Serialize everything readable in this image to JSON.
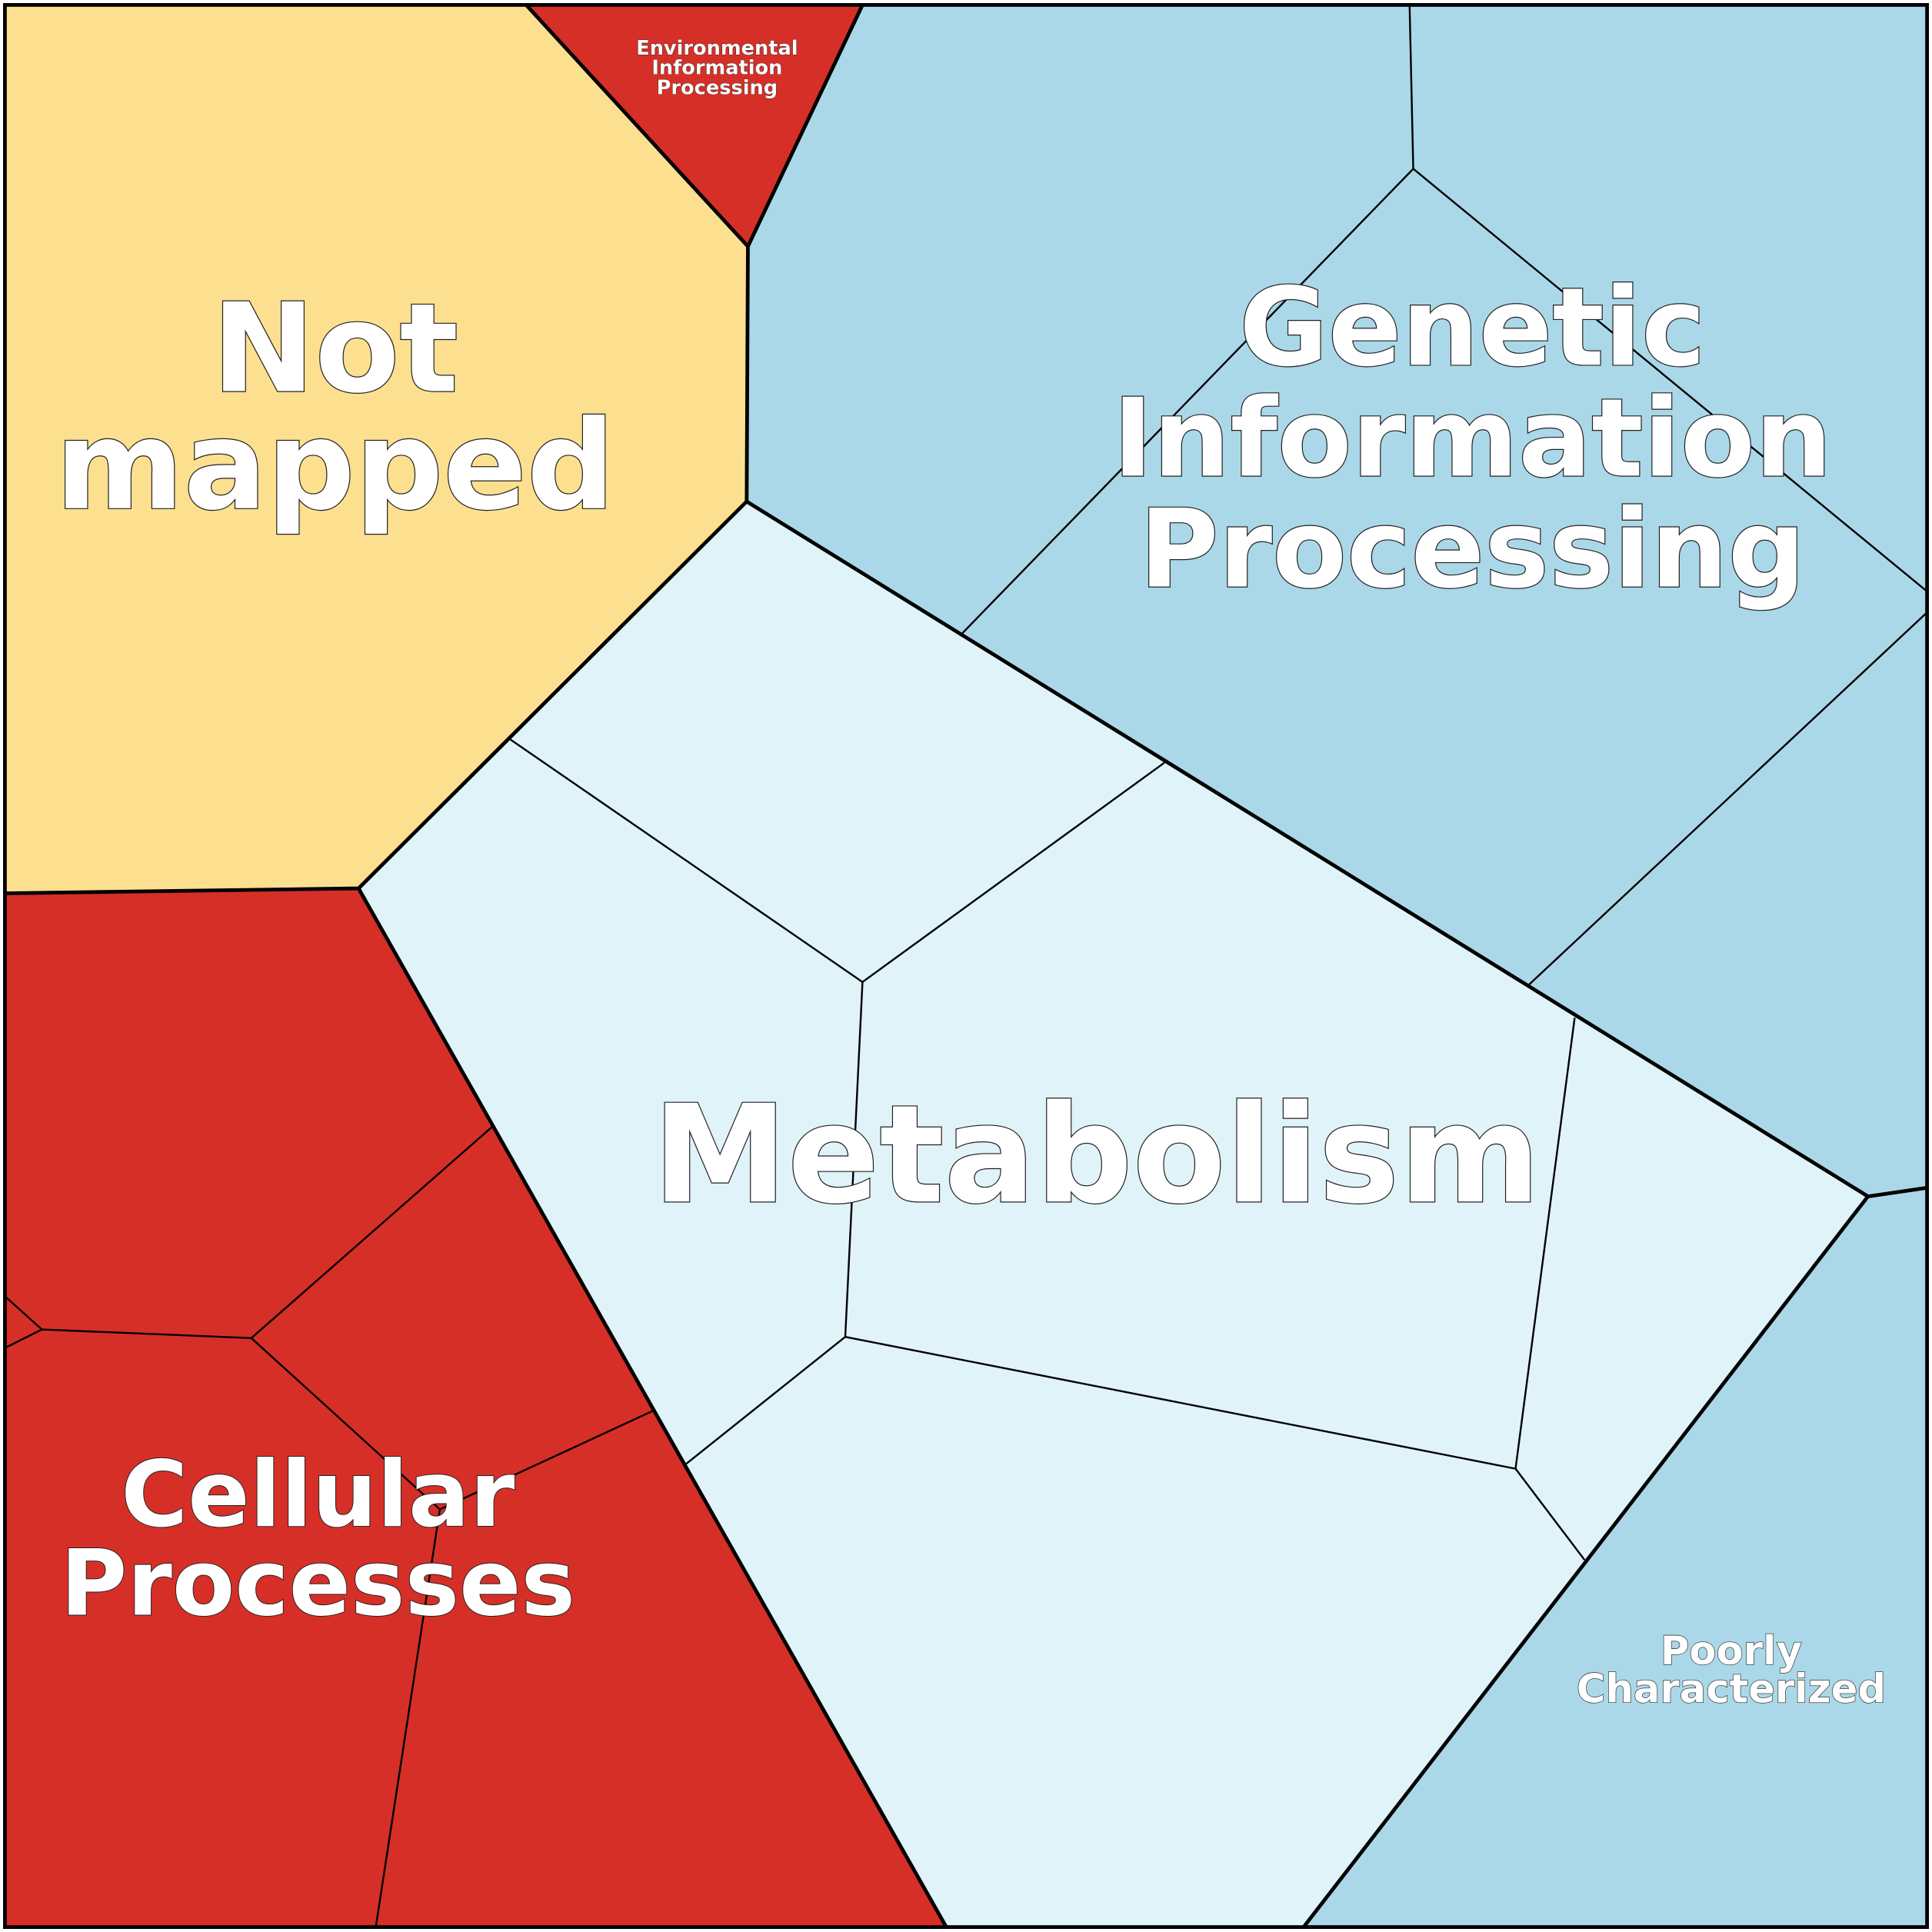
{
  "regions": [
    {
      "lines": [
        "Not",
        "mapped"
      ]
    },
    {
      "lines": [
        "Environmental",
        "Information",
        "Processing"
      ]
    },
    {
      "lines": [
        "Genetic",
        "Information",
        "Processing"
      ]
    },
    {
      "lines": [
        "Metabolism"
      ]
    },
    {
      "lines": [
        "Cellular",
        "Processes"
      ]
    },
    {
      "lines": [
        "Poorly",
        "Characterized"
      ]
    }
  ]
}
